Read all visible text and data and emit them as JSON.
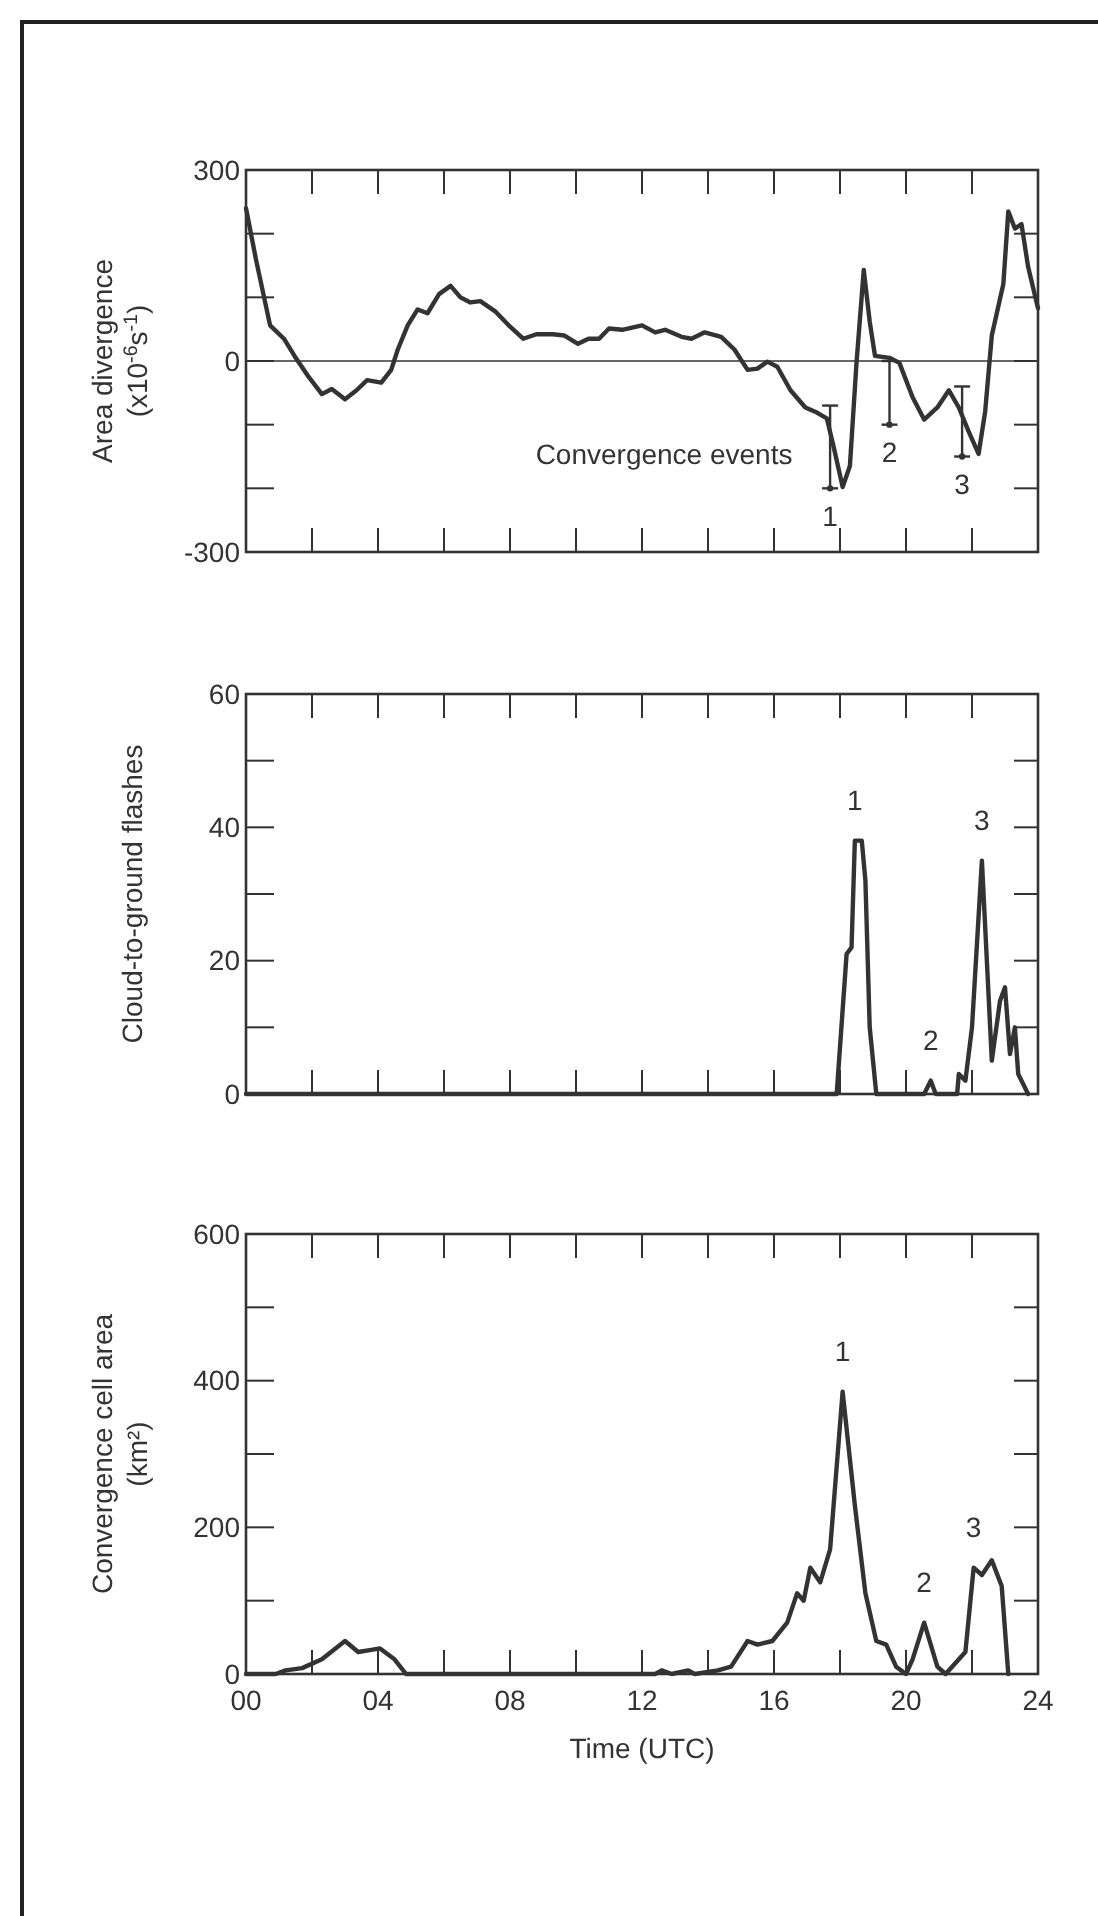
{
  "chart_data": [
    {
      "type": "line",
      "ylabel": "Area divergence (x10$^{-6}$s$^{-1}$)",
      "xlim": [
        0,
        24
      ],
      "xticks": [
        {
          "value": 0,
          "label": null
        },
        {
          "value": 2,
          "label": null
        },
        {
          "value": 4,
          "label": null
        },
        {
          "value": 6,
          "label": null
        },
        {
          "value": 8,
          "label": null
        },
        {
          "value": 10,
          "label": null
        },
        {
          "value": 12,
          "label": null
        },
        {
          "value": 14,
          "label": null
        },
        {
          "value": 16,
          "label": null
        },
        {
          "value": 18,
          "label": null
        },
        {
          "value": 20,
          "label": null
        },
        {
          "value": 22,
          "label": null
        },
        {
          "value": 24,
          "label": null
        }
      ],
      "ylim": [
        -300,
        300
      ],
      "yticks": [
        -300,
        {
          "value": -200,
          "label": null
        },
        {
          "value": -100,
          "label": null
        },
        0,
        {
          "value": 100,
          "label": null
        },
        {
          "value": 200,
          "label": null
        },
        300
      ],
      "tick_labels": "y",
      "grid": false,
      "marker": "none",
      "line_style": "solid",
      "x": [
        0,
        0.3,
        0.73,
        1.15,
        1.47,
        1.9,
        2.3,
        2.6,
        3.0,
        3.35,
        3.67,
        4.1,
        4.4,
        4.6,
        4.9,
        5.2,
        5.5,
        5.85,
        6.2,
        6.5,
        6.8,
        7.1,
        7.55,
        7.96,
        8.4,
        8.8,
        9.3,
        9.65,
        10.06,
        10.38,
        10.7,
        11.0,
        11.4,
        12.0,
        12.4,
        12.7,
        13.2,
        13.5,
        13.9,
        14.4,
        14.8,
        15.2,
        15.5,
        15.8,
        16.1,
        16.5,
        16.95,
        17.3,
        17.6,
        17.8,
        18.08,
        18.3,
        18.5,
        18.72,
        18.9,
        19.06,
        19.5,
        19.8,
        20.2,
        20.55,
        20.95,
        21.3,
        21.6,
        21.9,
        22.2,
        22.4,
        22.6,
        22.95,
        23.1,
        23.3,
        23.5,
        23.7,
        24
      ],
      "series": [
        {
          "color": "#333333",
          "values": [
            240,
            160,
            56,
            35,
            8,
            -25,
            -52,
            -44,
            -60,
            -46,
            -30,
            -34,
            -14,
            18,
            56,
            81,
            75,
            105,
            118,
            100,
            92,
            94,
            78,
            56,
            35,
            42,
            42,
            40,
            27,
            35,
            35,
            51,
            49,
            56,
            45,
            49,
            38,
            35,
            45,
            38,
            18,
            -14,
            -12,
            -1,
            -9,
            -46,
            -73,
            -81,
            -90,
            -133,
            -198,
            -165,
            -3,
            143,
            62,
            8,
            5,
            -3,
            -57,
            -92,
            -73,
            -46,
            -73,
            -111,
            -146,
            -79,
            40,
            121,
            235,
            208,
            215,
            148,
            83
          ]
        },
        {
          "type": "scatter",
          "marker": "circle",
          "color": "#333333",
          "x": [
            17.7,
            19.5,
            21.7
          ],
          "values": [
            -200,
            -100,
            -150
          ],
          "errors": [
            [
              -200,
              -70
            ],
            [
              -100,
              0
            ],
            [
              -150,
              -40
            ]
          ]
        }
      ],
      "ref_lines": [
        {
          "axis": "y",
          "value": 0,
          "color": "#333333"
        }
      ],
      "annotations": [
        "Convergence events",
        {
          "text": "1",
          "x": 17.7,
          "y": -200
        },
        {
          "text": "2",
          "x": 19.5,
          "y": -100
        },
        {
          "text": "3",
          "x": 21.7,
          "y": -150
        }
      ]
    },
    {
      "type": "line",
      "ylabel": "Cloud-to-ground flashes",
      "xlim": [
        0,
        24
      ],
      "xticks": [
        {
          "value": 0,
          "label": null
        },
        {
          "value": 2,
          "label": null
        },
        {
          "value": 4,
          "label": null
        },
        {
          "value": 6,
          "label": null
        },
        {
          "value": 8,
          "label": null
        },
        {
          "value": 10,
          "label": null
        },
        {
          "value": 12,
          "label": null
        },
        {
          "value": 14,
          "label": null
        },
        {
          "value": 16,
          "label": null
        },
        {
          "value": 18,
          "label": null
        },
        {
          "value": 20,
          "label": null
        },
        {
          "value": 22,
          "label": null
        },
        {
          "value": 24,
          "label": null
        }
      ],
      "ylim": [
        0,
        60
      ],
      "yticks": [
        0,
        {
          "value": 10,
          "label": null
        },
        20,
        {
          "value": 30,
          "label": null
        },
        40,
        {
          "value": 50,
          "label": null
        },
        60
      ],
      "tick_labels": "y",
      "grid": false,
      "marker": "none",
      "line_style": "solid",
      "x": [
        0,
        17.9,
        18.2,
        18.35,
        18.45,
        18.66,
        18.77,
        18.9,
        19.1,
        20.55,
        20.75,
        20.9,
        21.55,
        21.6,
        21.8,
        22.0,
        22.3,
        22.6,
        22.85,
        23.0,
        23.15,
        23.3,
        23.4,
        23.7
      ],
      "series": [
        {
          "color": "#333333",
          "values": [
            0,
            0,
            21,
            22,
            38,
            38,
            32,
            10,
            0,
            0,
            2,
            0,
            0,
            3,
            2,
            10,
            35,
            5,
            14,
            16,
            6,
            10,
            3,
            0
          ]
        }
      ],
      "annotations": [
        {
          "text": "1",
          "x": 18.45,
          "y": 38
        },
        {
          "text": "2",
          "x": 20.75,
          "y": 2
        },
        {
          "text": "3",
          "x": 22.3,
          "y": 35
        }
      ]
    },
    {
      "type": "line",
      "ylabel": "Convergence cell area (km²)",
      "xlabel": "Time (UTC)",
      "xlim": [
        0,
        24
      ],
      "xticks": [
        {
          "value": 0,
          "label": "00"
        },
        {
          "value": 2,
          "label": null
        },
        {
          "value": 4,
          "label": "04"
        },
        {
          "value": 6,
          "label": null
        },
        {
          "value": 8,
          "label": "08"
        },
        {
          "value": 10,
          "label": null
        },
        12,
        {
          "value": 14,
          "label": null
        },
        16,
        {
          "value": 18,
          "label": null
        },
        20,
        {
          "value": 22,
          "label": null
        },
        24
      ],
      "ylim": [
        0,
        600
      ],
      "yticks": [
        0,
        {
          "value": 100,
          "label": null
        },
        200,
        {
          "value": 300,
          "label": null
        },
        400,
        {
          "value": 500,
          "label": null
        },
        600
      ],
      "grid": false,
      "marker": "none",
      "line_style": "solid",
      "x": [
        0,
        0.9,
        1.2,
        1.7,
        2.3,
        3.0,
        3.4,
        3.8,
        4.05,
        4.5,
        4.85,
        12.4,
        12.6,
        12.9,
        13.4,
        13.6,
        14.3,
        14.7,
        15.2,
        15.5,
        15.95,
        16.4,
        16.7,
        16.9,
        17.1,
        17.4,
        17.7,
        18.08,
        18.45,
        18.77,
        19.1,
        19.4,
        19.7,
        20.0,
        20.2,
        20.55,
        20.95,
        21.2,
        21.5,
        21.8,
        22.05,
        22.3,
        22.6,
        22.9,
        23.1
      ],
      "series": [
        {
          "color": "#333333",
          "values": [
            0,
            0,
            5,
            8,
            20,
            45,
            30,
            33,
            35,
            20,
            0,
            0,
            5,
            0,
            5,
            0,
            5,
            10,
            45,
            40,
            45,
            70,
            110,
            100,
            145,
            125,
            170,
            385,
            230,
            110,
            45,
            40,
            10,
            0,
            20,
            70,
            10,
            0,
            15,
            30,
            145,
            135,
            155,
            120,
            0
          ]
        }
      ],
      "annotations": [
        {
          "text": "1",
          "x": 18.08,
          "y": 385
        },
        {
          "text": "2",
          "x": 20.55,
          "y": 70
        },
        {
          "text": "3",
          "x": 22.05,
          "y": 145
        }
      ]
    }
  ]
}
